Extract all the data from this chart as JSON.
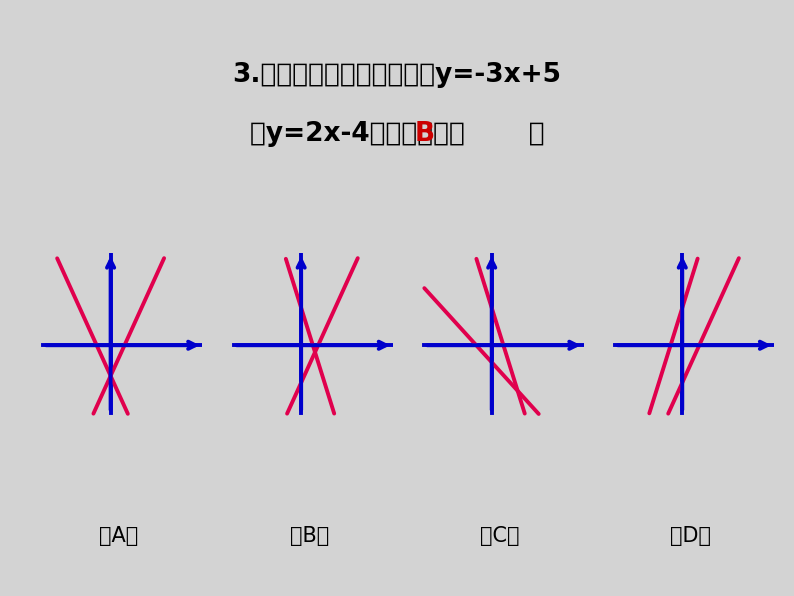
{
  "title_line1": "3.下列哪个图像是一次函数y=-3x+5",
  "title_line2_pre": "和y=2x-4的大致图像（  ",
  "title_line2_post": "  ）",
  "title_answer": "B",
  "bg_color": "#d3d3d3",
  "line_color": "#e0004d",
  "axis_color": "#0000cc",
  "label_color": "#000000",
  "answer_color": "#cc0000",
  "panels": [
    {
      "label": "（A）",
      "lines": [
        {
          "slope": 2.2,
          "yint": -0.45
        },
        {
          "slope": -2.2,
          "yint": -0.45
        }
      ]
    },
    {
      "label": "（B）",
      "lines": [
        {
          "slope": -3.2,
          "yint": 0.55
        },
        {
          "slope": 2.2,
          "yint": -0.55
        }
      ]
    },
    {
      "label": "（C）",
      "lines": [
        {
          "slope": -3.2,
          "yint": 0.55
        },
        {
          "slope": -1.1,
          "yint": -0.25
        }
      ]
    },
    {
      "label": "（D）",
      "lines": [
        {
          "slope": 3.2,
          "yint": 0.55
        },
        {
          "slope": 2.2,
          "yint": -0.55
        }
      ]
    }
  ],
  "xlim": [
    -1.1,
    1.35
  ],
  "ylim": [
    -1.1,
    1.35
  ]
}
